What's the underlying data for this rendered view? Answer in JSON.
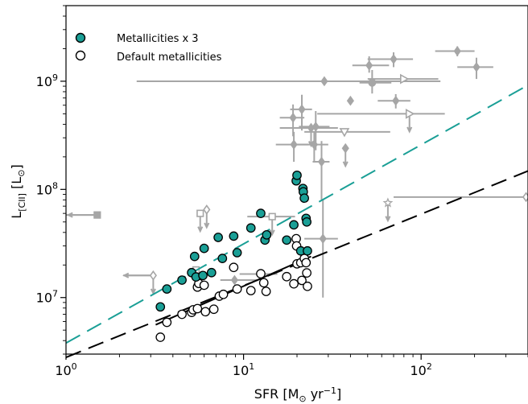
{
  "chart_data": {
    "type": "scatter",
    "xscale": "log",
    "yscale": "log",
    "xlim": [
      1,
      400
    ],
    "ylim": [
      3000000,
      5000000000
    ],
    "xlabel": {
      "pre": "SFR [M",
      "sun": "⊙",
      "mid": " yr",
      "sup": "−1",
      "post": "]"
    },
    "ylabel": {
      "pre": "L",
      "sub": "[CII]",
      "mid": " [L",
      "sun": "⊙",
      "post": "]"
    },
    "x_ticks": [
      {
        "value": 1,
        "base": "10",
        "exp": "0"
      },
      {
        "value": 10,
        "base": "10",
        "exp": "1"
      },
      {
        "value": 100,
        "base": "10",
        "exp": "2"
      }
    ],
    "y_ticks": [
      {
        "value": 10000000,
        "base": "10",
        "exp": "7"
      },
      {
        "value": 100000000,
        "base": "10",
        "exp": "8"
      },
      {
        "value": 1000000000,
        "base": "10",
        "exp": "9"
      }
    ],
    "legend": {
      "location": "upper-left",
      "entries": [
        {
          "label": "Metallicities x 3",
          "marker": "filled-circle",
          "color": "#1a9f96"
        },
        {
          "label": "Default metallicities",
          "marker": "open-circle",
          "color": "#000000"
        }
      ]
    },
    "series": [
      {
        "name": "Metallicities x 3",
        "marker": "filled-circle",
        "color": "#1a9f96",
        "points": [
          [
            3.4,
            8200000
          ],
          [
            3.7,
            12000000
          ],
          [
            4.5,
            14500000
          ],
          [
            5.1,
            17000000
          ],
          [
            5.3,
            24000000
          ],
          [
            5.4,
            15500000
          ],
          [
            5.9,
            16000000
          ],
          [
            6.0,
            28500000
          ],
          [
            6.6,
            17000000
          ],
          [
            7.2,
            36000000
          ],
          [
            7.6,
            23000000
          ],
          [
            8.8,
            37000000
          ],
          [
            9.2,
            26000000
          ],
          [
            11.0,
            44000000
          ],
          [
            12.5,
            60000000
          ],
          [
            13.2,
            34000000
          ],
          [
            13.5,
            38000000
          ],
          [
            17.5,
            34000000
          ],
          [
            19.2,
            47000000
          ],
          [
            19.8,
            120000000
          ],
          [
            20.0,
            135000000
          ],
          [
            21.0,
            27000000
          ],
          [
            21.6,
            102000000
          ],
          [
            21.7,
            95000000
          ],
          [
            22.0,
            83000000
          ],
          [
            22.5,
            54000000
          ],
          [
            22.7,
            50000000
          ],
          [
            22.9,
            27000000
          ]
        ]
      },
      {
        "name": "Default metallicities",
        "marker": "open-circle",
        "color": "#000000",
        "points": [
          [
            3.4,
            4300000
          ],
          [
            3.7,
            5900000
          ],
          [
            4.5,
            7000000
          ],
          [
            5.1,
            7300000
          ],
          [
            5.2,
            7700000
          ],
          [
            5.5,
            12500000
          ],
          [
            5.5,
            7900000
          ],
          [
            5.6,
            13500000
          ],
          [
            6.0,
            13000000
          ],
          [
            6.1,
            7400000
          ],
          [
            6.8,
            7800000
          ],
          [
            7.3,
            10300000
          ],
          [
            7.7,
            10700000
          ],
          [
            8.8,
            19000000
          ],
          [
            9.2,
            12000000
          ],
          [
            11.0,
            11600000
          ],
          [
            12.5,
            16600000
          ],
          [
            13.0,
            13700000
          ],
          [
            13.4,
            11400000
          ],
          [
            17.5,
            15600000
          ],
          [
            19.2,
            13400000
          ],
          [
            19.8,
            35000000
          ],
          [
            19.9,
            30000000
          ],
          [
            20.0,
            20500000
          ],
          [
            21.0,
            21000000
          ],
          [
            21.3,
            14400000
          ],
          [
            22.0,
            23000000
          ],
          [
            22.5,
            21000000
          ],
          [
            22.7,
            16900000
          ],
          [
            22.9,
            12700000
          ]
        ]
      },
      {
        "name": "",
        "role": "fit-default",
        "style": "solid",
        "color": "#000000",
        "points": [
          [
            3.2,
            5600000
          ],
          [
            24.0,
            24000000
          ]
        ]
      },
      {
        "name": "",
        "role": "fit-x3-extrapolation",
        "style": "dashed",
        "color": "#1a9f96",
        "points": [
          [
            1,
            3800000
          ],
          [
            400,
            920000000
          ]
        ]
      },
      {
        "name": "",
        "role": "fit-default-extrapolation",
        "style": "dashed",
        "color": "#000000",
        "points": [
          [
            1,
            2800000
          ],
          [
            400,
            148000000
          ]
        ]
      },
      {
        "name": "",
        "role": "observations",
        "color": "#a6a6a6",
        "points": [
          {
            "x": 1.5,
            "y": 58000000,
            "xerr": [
              0.5,
              0
            ],
            "marker": "square",
            "filled": true,
            "xlim": "upper"
          },
          {
            "x": 3.1,
            "y": 16000000,
            "xerr": [
              1.0,
              0
            ],
            "marker": "diamond",
            "filled": false,
            "xlim": "upper",
            "ylim": "upper"
          },
          {
            "x": 5.4,
            "y": 18000000,
            "marker": "square",
            "filled": false,
            "ylim": "upper"
          },
          {
            "x": 5.7,
            "y": 60000000,
            "marker": "square",
            "filled": false,
            "ylim": "upper"
          },
          {
            "x": 6.2,
            "y": 65000000,
            "marker": "diamond",
            "filled": false,
            "ylim": "upper"
          },
          {
            "x": 8.9,
            "y": 14500000,
            "xerr": [
              1.5,
              3.0
            ],
            "marker": "diamond",
            "filled": true
          },
          {
            "x": 12.5,
            "y": 16500000,
            "xerr": [
              3.0,
              3.0
            ],
            "marker": "circle",
            "filled": true
          },
          {
            "x": 14.5,
            "y": 56000000,
            "xerr": [
              4.0,
              5.0
            ],
            "marker": "square",
            "filled": false,
            "ylim": "upper"
          },
          {
            "x": 19.0,
            "y": 460000000,
            "xerr": [
              3.0,
              3.0
            ],
            "yerr": [
              150000000,
              150000000
            ],
            "marker": "diamond",
            "filled": true
          },
          {
            "x": 19.2,
            "y": 260000000,
            "xerr": [
              4.0,
              4.0
            ],
            "yerr": [
              80000000,
              80000000
            ],
            "marker": "diamond",
            "filled": true
          },
          {
            "x": 21.3,
            "y": 550000000,
            "xerr": [
              3.0,
              3.0
            ],
            "yerr": [
              200000000,
              200000000
            ],
            "marker": "diamond",
            "filled": true
          },
          {
            "x": 24.0,
            "y": 370000000,
            "xerr": [
              8.0,
              10.0
            ],
            "marker": "diamond",
            "filled": true,
            "ylim": "upper"
          },
          {
            "x": 25.0,
            "y": 260000000,
            "xerr": [
              5.0,
              5.0
            ],
            "yerr": [
              80000000,
              80000000
            ],
            "marker": "diamond",
            "filled": true
          },
          {
            "x": 25.5,
            "y": 380000000,
            "xerr": [
              5.0,
              5.0
            ],
            "yerr": [
              150000000,
              150000000
            ],
            "marker": "diamond",
            "filled": true
          },
          {
            "x": 27.5,
            "y": 180000000,
            "xerr": [
              3.0,
              3.0
            ],
            "yerr": [
              100000000,
              100000000
            ],
            "marker": "diamond",
            "filled": true
          },
          {
            "x": 28.0,
            "y": 35000000,
            "xerr": [
              6.0,
              6.0
            ],
            "yerr": [
              25000000,
              45000000
            ],
            "marker": "diamond",
            "filled": true
          },
          {
            "x": 28.5,
            "y": 1000000000,
            "xerr": [
              26.0,
              100.0
            ],
            "marker": "diamond",
            "filled": true
          },
          {
            "x": 37.0,
            "y": 340000000,
            "xerr": [
              15.0,
              30.0
            ],
            "marker": "triangle-down",
            "filled": false
          },
          {
            "x": 37.5,
            "y": 240000000,
            "marker": "diamond",
            "filled": true,
            "ylim": "upper"
          },
          {
            "x": 40.0,
            "y": 660000000,
            "marker": "diamond",
            "filled": true
          },
          {
            "x": 51.0,
            "y": 1400000000,
            "xerr": [
              10.0,
              15.0
            ],
            "yerr": [
              200000000,
              300000000
            ],
            "marker": "diamond",
            "filled": true
          },
          {
            "x": 53.0,
            "y": 970000000,
            "xerr": [
              8.0,
              15.0
            ],
            "yerr": [
              200000000,
              300000000
            ],
            "marker": "circle",
            "filled": true
          },
          {
            "x": 65.0,
            "y": 75000000,
            "marker": "star",
            "filled": false,
            "ylim": "upper"
          },
          {
            "x": 70.0,
            "y": 1600000000,
            "xerr": [
              20.0,
              20.0
            ],
            "yerr": [
              250000000,
              250000000
            ],
            "marker": "diamond",
            "filled": true
          },
          {
            "x": 72.0,
            "y": 660000000,
            "xerr": [
              15.0,
              15.0
            ],
            "yerr": [
              100000000,
              100000000
            ],
            "marker": "diamond",
            "filled": true
          },
          {
            "x": 80.0,
            "y": 1050000000,
            "xerr": [
              30.0,
              45.0
            ],
            "marker": "triangle-right",
            "filled": false
          },
          {
            "x": 86.0,
            "y": 500000000,
            "xerr": [
              60.0,
              50.0
            ],
            "marker": "triangle-right",
            "filled": false,
            "ylim": "upper"
          },
          {
            "x": 160.0,
            "y": 1900000000,
            "xerr": [
              40.0,
              40.0
            ],
            "yerr": [
              200000000,
              200000000
            ],
            "marker": "diamond",
            "filled": true
          },
          {
            "x": 205.0,
            "y": 1350000000,
            "xerr": [
              45.0,
              50.0
            ],
            "yerr": [
              300000000,
              300000000
            ],
            "marker": "diamond",
            "filled": true
          },
          {
            "x": 390.0,
            "y": 85000000,
            "xerr": [
              320.0,
              0
            ],
            "marker": "diamond",
            "filled": false
          }
        ]
      }
    ]
  }
}
